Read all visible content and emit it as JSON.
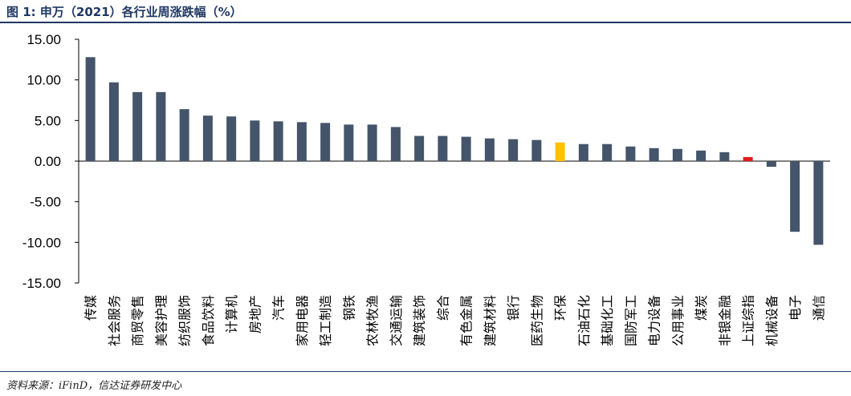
{
  "header": {
    "title": "图 1:  申万（2021）各行业周涨跌幅（%）"
  },
  "footer": {
    "source": "资料来源：iFinD，信达证券研发中心"
  },
  "chart_data": {
    "type": "bar",
    "title": "",
    "xlabel": "",
    "ylabel": "",
    "ylim": [
      -15,
      15
    ],
    "yticks": [
      15,
      10,
      5,
      0,
      -5,
      -10,
      -15
    ],
    "ytick_labels": [
      "15.00",
      "10.00",
      "5.00",
      "0.00",
      "-5.00",
      "-10.00",
      "-15.00"
    ],
    "grid": false,
    "legend": "none",
    "categories": [
      "传媒",
      "社会服务",
      "商贸零售",
      "美容护理",
      "纺织服饰",
      "食品饮料",
      "计算机",
      "房地产",
      "汽车",
      "家用电器",
      "轻工制造",
      "钢铁",
      "农林牧渔",
      "交通运输",
      "建筑装饰",
      "综合",
      "有色金属",
      "建筑材料",
      "银行",
      "医药生物",
      "环保",
      "石油石化",
      "基础化工",
      "国防军工",
      "电力设备",
      "公用事业",
      "煤炭",
      "非银金融",
      "上证综指",
      "机械设备",
      "电子",
      "通信"
    ],
    "values": [
      12.8,
      9.7,
      8.5,
      8.5,
      6.4,
      5.6,
      5.5,
      5.0,
      4.9,
      4.8,
      4.7,
      4.5,
      4.5,
      4.2,
      3.1,
      3.1,
      3.0,
      2.8,
      2.7,
      2.6,
      2.3,
      2.1,
      2.1,
      1.8,
      1.6,
      1.5,
      1.3,
      1.1,
      0.5,
      -0.7,
      -8.7,
      -10.3
    ],
    "colors": {
      "default": "#44546a",
      "highlight": "#ffc000",
      "index": "#e31a1c"
    },
    "highlight_categories": [
      "环保"
    ],
    "index_categories": [
      "上证综指"
    ]
  }
}
